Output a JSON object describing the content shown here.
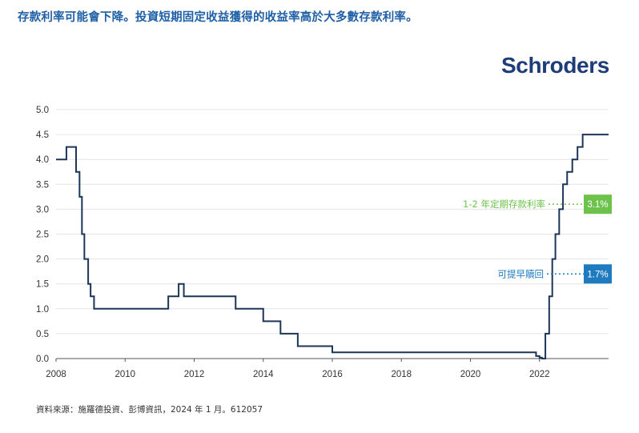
{
  "headline": "存款利率可能會下降。投資短期固定收益獲得的收益率高於大多數存款利率。",
  "brand": "Schroders",
  "source": "資料來源：施羅德投資、彭博資訊，2024 年 1 月。612057",
  "colors": {
    "line": "#1d3557",
    "grid": "#e4e4e4",
    "axis": "#555555",
    "deposit": "#6cc24a",
    "callable": "#1f7bc0",
    "headline": "#1f5fa6",
    "brand": "#1d3c78"
  },
  "chart_data": {
    "type": "line",
    "title": "",
    "xlabel": "",
    "ylabel": "",
    "xlim": [
      2008,
      2024
    ],
    "ylim": [
      0,
      5
    ],
    "x_ticks": [
      "2008",
      "2010",
      "2012",
      "2014",
      "2016",
      "2018",
      "2020",
      "2022"
    ],
    "y_ticks": [
      "0.0",
      "0.5",
      "1.0",
      "1.5",
      "2.0",
      "2.5",
      "3.0",
      "3.5",
      "4.0",
      "4.5",
      "5.0"
    ],
    "grid": true,
    "series": [
      {
        "step": true,
        "x": [
          2008.0,
          2008.3,
          2008.58,
          2008.68,
          2008.75,
          2008.82,
          2008.93,
          2009.0,
          2009.1,
          2011.0,
          2011.25,
          2011.55,
          2011.7,
          2013.2,
          2014.0,
          2014.5,
          2015.0,
          2016.0,
          2021.9,
          2022.0,
          2022.07,
          2022.17,
          2022.28,
          2022.37,
          2022.46,
          2022.57,
          2022.68,
          2022.8,
          2022.95,
          2023.1,
          2023.25,
          2023.4,
          2023.6,
          2024.0
        ],
        "y": [
          4.0,
          4.25,
          3.75,
          3.25,
          2.5,
          2.0,
          1.5,
          1.25,
          1.0,
          1.0,
          1.25,
          1.5,
          1.25,
          1.0,
          0.75,
          0.5,
          0.25,
          0.125,
          0.05,
          0.02,
          0.0,
          0.5,
          1.25,
          2.0,
          2.5,
          3.0,
          3.5,
          3.75,
          4.0,
          4.25,
          4.5,
          4.5,
          4.5,
          4.5
        ]
      }
    ],
    "annotations": [
      {
        "label": "1-2 年定期存款利率",
        "value_label": "3.1%",
        "y": 3.1
      },
      {
        "label": "可提早贖回",
        "value_label": "1.7%",
        "y": 1.7
      }
    ]
  }
}
